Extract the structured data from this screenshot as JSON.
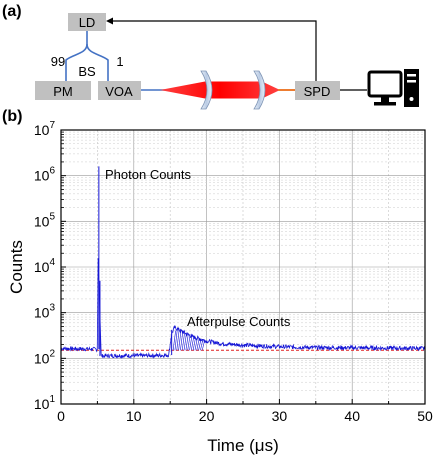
{
  "panel_a": {
    "label": "(a)",
    "ld_label": "LD",
    "pm_label": "PM",
    "voa_label": "VOA",
    "spd_label": "SPD",
    "bs_label": "BS",
    "split_left": "99",
    "split_right": "1",
    "colors": {
      "box_fill": "#c0c0c0",
      "fiber": "#4472c4",
      "beam": "#ff0000",
      "lens": "#c9d7ea",
      "output_fiber": "#ed7d31",
      "wire": "#000000"
    },
    "icons": [
      "desktop-computer-icon"
    ]
  },
  "panel_b": {
    "label": "(b)"
  },
  "chart_data": {
    "type": "line",
    "xlabel": "Time (μs)",
    "ylabel": "Counts",
    "xlim": [
      0,
      50
    ],
    "ylim": [
      10,
      10000000
    ],
    "yscale": "log",
    "grid": true,
    "xticks": [
      {
        "value": 0,
        "label": "0"
      },
      {
        "value": 10,
        "label": "10"
      },
      {
        "value": 20,
        "label": "20"
      },
      {
        "value": 30,
        "label": "30"
      },
      {
        "value": 40,
        "label": "40"
      },
      {
        "value": 50,
        "label": "50"
      }
    ],
    "yticks": [
      {
        "exp": 1,
        "base": "10",
        "sup": "1"
      },
      {
        "exp": 2,
        "base": "10",
        "sup": "2"
      },
      {
        "exp": 3,
        "base": "10",
        "sup": "3"
      },
      {
        "exp": 4,
        "base": "10",
        "sup": "4"
      },
      {
        "exp": 5,
        "base": "10",
        "sup": "5"
      },
      {
        "exp": 6,
        "base": "10",
        "sup": "6"
      },
      {
        "exp": 7,
        "base": "10",
        "sup": "7"
      }
    ],
    "series_color": "#1515d6",
    "baseline": {
      "value": 150,
      "x_range": [
        0,
        50
      ],
      "color": "#e02020"
    },
    "series": [
      {
        "x": [
          0,
          2,
          4,
          5,
          5.2,
          5.3,
          5.4,
          5.5,
          5.6,
          6,
          8,
          10,
          12,
          14,
          14.8,
          15.2,
          15.6,
          16,
          17,
          18,
          20,
          22,
          25,
          28,
          31,
          35,
          40,
          45,
          50
        ],
        "y": [
          165,
          162,
          160,
          158,
          1600000,
          5000,
          1000,
          115,
          112,
          113,
          115,
          114,
          115,
          116,
          118,
          350,
          470,
          440,
          360,
          300,
          240,
          210,
          195,
          185,
          178,
          172,
          170,
          168,
          165
        ]
      }
    ],
    "annotations": [
      {
        "text": "Photon Counts",
        "x": 7.0,
        "y": 1400000
      },
      {
        "text": "Afterpulse Counts",
        "x": 17.2,
        "y": 650
      }
    ]
  }
}
